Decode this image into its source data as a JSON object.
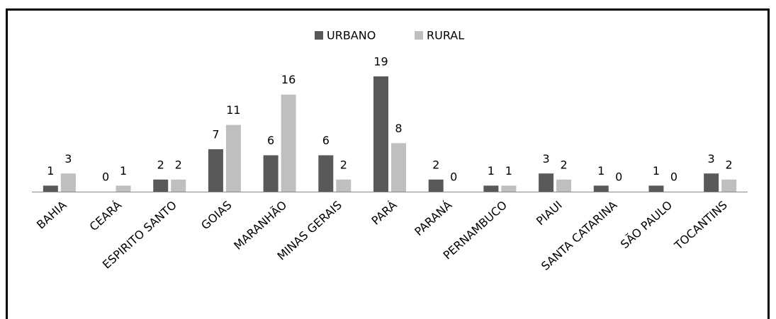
{
  "chart_data": {
    "type": "bar",
    "categories": [
      "BAHIA",
      "CEARÁ",
      "ESPIRITO SANTO",
      "GOIAS",
      "MARANHÃO",
      "MINAS GERAIS",
      "PARÁ",
      "PARANÁ",
      "PERNAMBUCO",
      "PIAUI",
      "SANTA CATARINA",
      "SÃO PAULO",
      "TOCANTINS"
    ],
    "series": [
      {
        "name": "URBANO",
        "color": "#595959",
        "values": [
          1,
          0,
          2,
          7,
          6,
          6,
          19,
          2,
          1,
          3,
          1,
          1,
          3
        ]
      },
      {
        "name": "RURAL",
        "color": "#bfbfbf",
        "values": [
          3,
          1,
          2,
          11,
          16,
          2,
          8,
          0,
          1,
          2,
          0,
          0,
          2
        ]
      }
    ],
    "legend": "top"
  }
}
